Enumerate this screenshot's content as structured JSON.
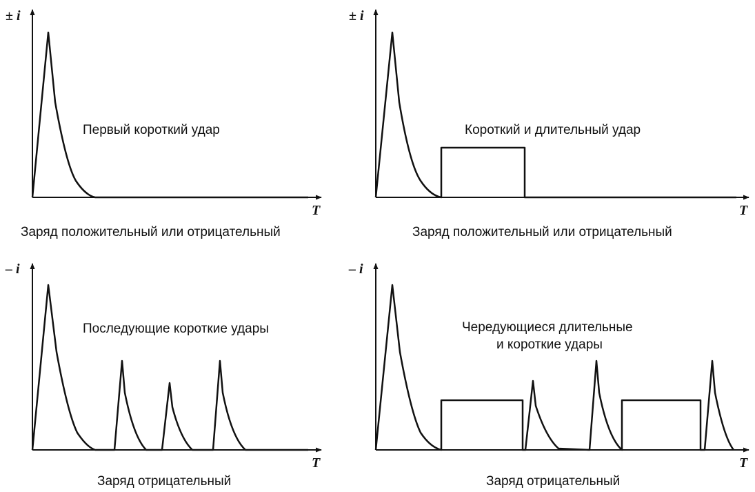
{
  "colors": {
    "line": "#111111",
    "background": "#ffffff"
  },
  "panels": [
    {
      "y_label": "± i",
      "x_label": "T",
      "title_lines": [
        "Первый короткий удар"
      ],
      "caption": "Заряд положительный или отрицательный",
      "waveform": "first-short-stroke"
    },
    {
      "y_label": "± i",
      "x_label": "T",
      "title_lines": [
        "Короткий и длительный удар"
      ],
      "caption": "Заряд положительный или отрицательный",
      "waveform": "short-and-long-stroke"
    },
    {
      "y_label": "– i",
      "x_label": "T",
      "title_lines": [
        "Последующие короткие удары"
      ],
      "caption": "Заряд отрицательный",
      "waveform": "subsequent-short-strokes"
    },
    {
      "y_label": "– i",
      "x_label": "T",
      "title_lines": [
        "Чередующиеся длительные",
        "и короткие удары"
      ],
      "caption": "Заряд отрицательный",
      "waveform": "alternating-long-and-short-strokes"
    }
  ]
}
